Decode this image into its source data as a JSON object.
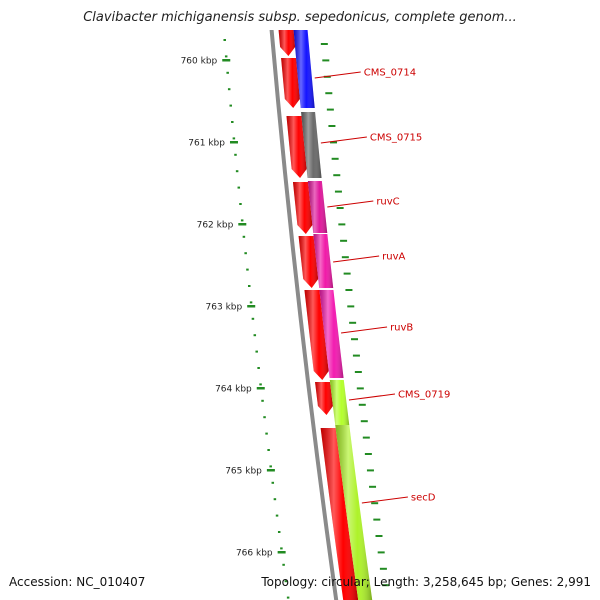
{
  "title": "Clavibacter michiganensis subsp. sepedonicus, complete genom...",
  "accession_label": "Accession: NC_010407",
  "summary_label": "Topology: circular; Length: 3,258,645 bp; Genes: 2,991",
  "ruler": {
    "ticks": [
      {
        "kbp": 760,
        "label": "760 kbp"
      },
      {
        "kbp": 761,
        "label": "761 kbp"
      },
      {
        "kbp": 762,
        "label": "762 kbp"
      },
      {
        "kbp": 763,
        "label": "763 kbp"
      },
      {
        "kbp": 764,
        "label": "764 kbp"
      },
      {
        "kbp": 765,
        "label": "765 kbp"
      },
      {
        "kbp": 766,
        "label": "766 kbp"
      }
    ],
    "color": "#228b22"
  },
  "genes": [
    {
      "name": "CMS_0714",
      "color": "#1414ff"
    },
    {
      "name": "CMS_0715",
      "color": "#6a6a6a"
    },
    {
      "name": "ruvC",
      "color": "#e0189c"
    },
    {
      "name": "ruvA",
      "color": "#f01aa8"
    },
    {
      "name": "ruvB",
      "color": "#f21cb0"
    },
    {
      "name": "CMS_0719",
      "color": "#b4ff2c"
    },
    {
      "name": "secD",
      "color": "#aef22a"
    }
  ],
  "colors": {
    "cds": "#ff0000",
    "backbone": "#8a8a8a",
    "label": "#cc0000"
  }
}
